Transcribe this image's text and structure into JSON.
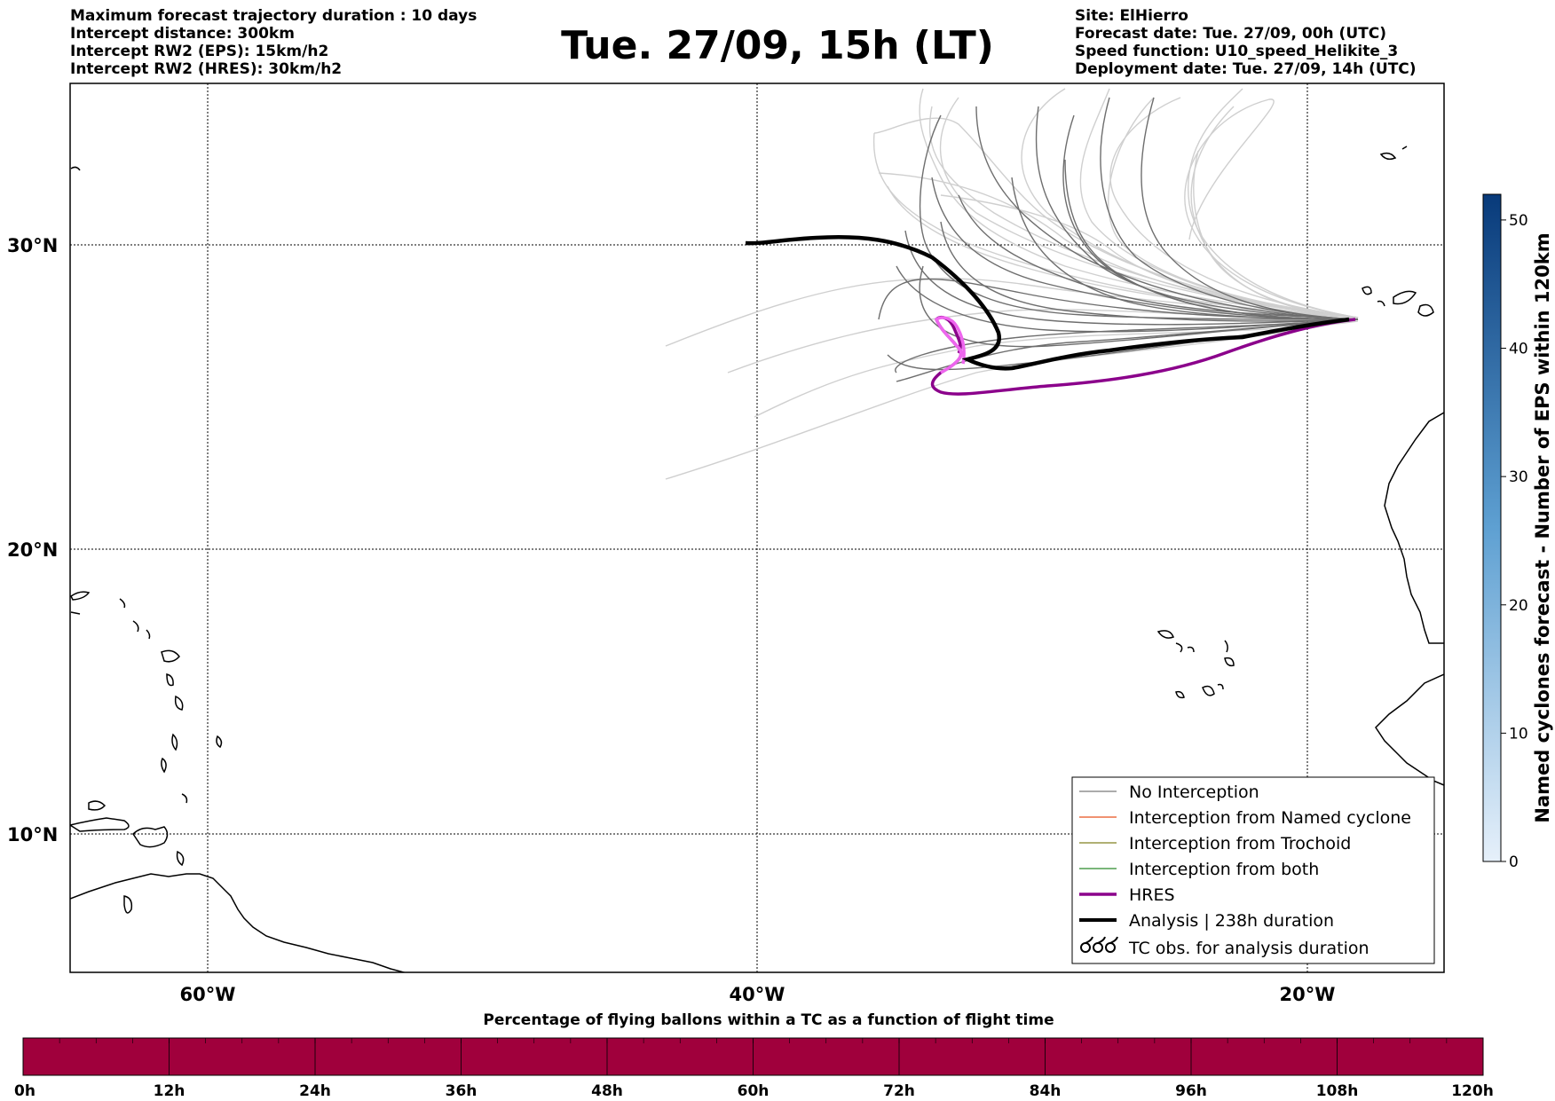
{
  "header_left": [
    "Maximum forecast trajectory duration : 10 days",
    "Intercept distance: 300km",
    "Intercept RW2 (EPS):  15km/h2",
    "Intercept RW2 (HRES): 30km/h2"
  ],
  "header_right": [
    "Site: ElHierro",
    "Forecast date: Tue. 27/09, 00h (UTC)",
    "Speed function: U10_speed_Helikite_3",
    "Deployment date: Tue. 27/09, 14h (UTC)"
  ],
  "title": "Tue. 27/09, 15h (LT)",
  "map": {
    "lat_labels": [
      "30°N",
      "20°N",
      "10°N"
    ],
    "lon_labels": [
      "60°W",
      "40°W",
      "20°W"
    ]
  },
  "legend": {
    "items": [
      {
        "label": "No Interception",
        "color": "#7a7a7a"
      },
      {
        "label": "Interception from Named cyclone",
        "color": "#e8501e"
      },
      {
        "label": "Interception from Trochoid",
        "color": "#808020"
      },
      {
        "label": "Interception from both",
        "color": "#2a8a2a"
      },
      {
        "label": "HRES",
        "color": "#8b008b"
      },
      {
        "label": "Analysis | 238h duration",
        "color": "#000000"
      },
      {
        "label": "TC obs. for analysis duration",
        "color": "#000000",
        "icon": "cyclone-symbols"
      }
    ]
  },
  "colorbar_right": {
    "label": "Named cyclones forecast - Number of EPS within 120km",
    "ticks": [
      "0",
      "10",
      "20",
      "30",
      "40",
      "50"
    ],
    "range": [
      0,
      52
    ],
    "color_low": "#e6f0fa",
    "color_high": "#083a7a"
  },
  "colorbar_bottom": {
    "title": "Percentage of flying ballons within a TC as a function of flight time",
    "ticks": [
      "0h",
      "12h",
      "24h",
      "36h",
      "48h",
      "60h",
      "72h",
      "84h",
      "96h",
      "108h",
      "120h"
    ],
    "color": "#a0003c"
  }
}
